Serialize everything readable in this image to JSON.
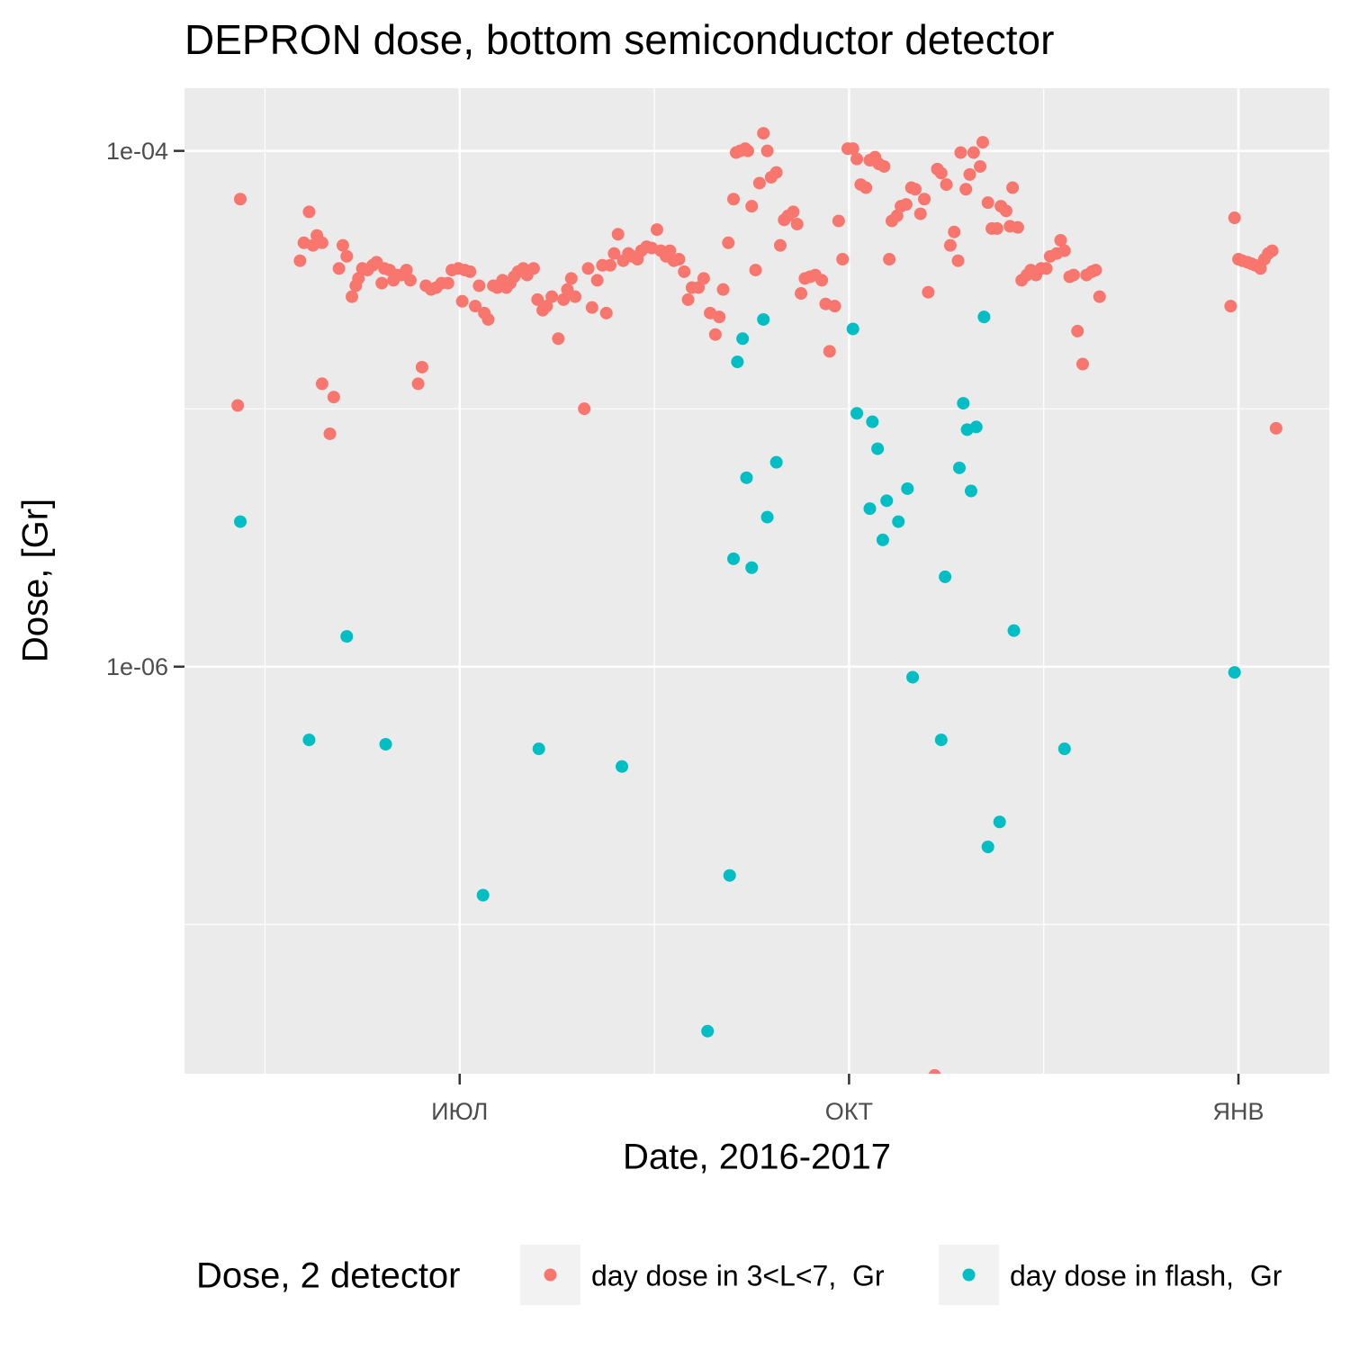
{
  "chart_data": {
    "type": "scatter",
    "title": "DEPRON dose, bottom semiconductor detector",
    "x_label": "Date, 2016-2017",
    "y_label": "Dose, [Gr]",
    "log_y": true,
    "grid": true,
    "xlim": [
      4.88,
      13.7
    ],
    "xticks": [
      {
        "value": 7,
        "label": "ИЮЛ"
      },
      {
        "value": 10,
        "label": "ОКТ"
      },
      {
        "value": 13,
        "label": "ЯНВ"
      }
    ],
    "xminor": [
      5.5,
      8.5,
      11.5
    ],
    "ylim": [
      2.64e-08,
      0.000175
    ],
    "yticks": [
      {
        "value": 0.0001,
        "label": "1e-04"
      },
      {
        "value": 1e-06,
        "label": "1e-06"
      }
    ],
    "yminor": [
      1e-05,
      1e-07
    ],
    "legend_title": "Dose, 2 detector",
    "legend_position": "bottom",
    "series": [
      {
        "name": "day dose in 3<L<7,  Gr",
        "color": "#F8766D",
        "x": [
          5.29,
          5.31,
          5.77,
          5.8,
          5.84,
          5.87,
          5.9,
          5.94,
          5.94,
          6.0,
          6.03,
          6.07,
          6.1,
          6.13,
          6.17,
          6.2,
          6.22,
          6.25,
          6.29,
          6.33,
          6.36,
          6.4,
          6.42,
          6.46,
          6.49,
          6.52,
          6.55,
          6.59,
          6.62,
          6.68,
          6.71,
          6.74,
          6.78,
          6.82,
          6.86,
          6.91,
          6.94,
          6.99,
          7.02,
          7.04,
          7.08,
          7.12,
          7.15,
          7.19,
          7.22,
          7.26,
          7.29,
          7.33,
          7.36,
          7.39,
          7.42,
          7.45,
          7.49,
          7.52,
          7.57,
          7.6,
          7.64,
          7.67,
          7.71,
          7.76,
          7.8,
          7.83,
          7.86,
          7.89,
          7.96,
          7.99,
          8.02,
          8.06,
          8.1,
          8.13,
          8.16,
          8.19,
          8.22,
          8.26,
          8.3,
          8.33,
          8.37,
          8.4,
          8.44,
          8.48,
          8.52,
          8.55,
          8.59,
          8.62,
          8.65,
          8.69,
          8.73,
          8.76,
          8.79,
          8.84,
          8.88,
          8.93,
          8.97,
          9.0,
          9.03,
          9.07,
          9.11,
          9.13,
          9.16,
          9.2,
          9.22,
          9.25,
          9.28,
          9.31,
          9.34,
          9.37,
          9.4,
          9.44,
          9.47,
          9.5,
          9.53,
          9.57,
          9.6,
          9.63,
          9.66,
          9.7,
          9.74,
          9.79,
          9.82,
          9.85,
          9.89,
          9.92,
          9.95,
          9.99,
          10.03,
          10.06,
          10.09,
          10.13,
          10.16,
          10.2,
          10.23,
          10.27,
          10.31,
          10.33,
          10.37,
          10.4,
          10.44,
          10.48,
          10.51,
          10.55,
          10.58,
          10.61,
          10.66,
          10.68,
          10.71,
          10.75,
          10.78,
          10.81,
          10.84,
          10.86,
          10.9,
          10.93,
          10.96,
          11.01,
          11.03,
          11.07,
          11.1,
          11.14,
          11.17,
          11.21,
          11.24,
          11.26,
          11.3,
          11.33,
          11.37,
          11.4,
          11.44,
          11.48,
          11.52,
          11.55,
          11.6,
          11.63,
          11.66,
          11.7,
          11.73,
          11.76,
          11.8,
          11.83,
          11.87,
          11.9,
          11.93,
          12.94,
          12.97,
          13.0,
          13.03,
          13.07,
          13.1,
          13.13,
          13.17,
          13.2,
          13.23,
          13.26,
          13.29
        ],
        "values": [
          1.03e-05,
          6.5e-05,
          3.75e-05,
          4.4e-05,
          5.8e-05,
          4.3e-05,
          4.7e-05,
          1.25e-05,
          4.4e-05,
          8e-06,
          1.11e-05,
          3.5e-05,
          4.3e-05,
          3.9e-05,
          2.72e-05,
          3e-05,
          3.2e-05,
          3.5e-05,
          3.45e-05,
          3.6e-05,
          3.7e-05,
          3.07e-05,
          3.5e-05,
          3.45e-05,
          3.15e-05,
          3.3e-05,
          3.3e-05,
          3.45e-05,
          3.15e-05,
          1.25e-05,
          1.45e-05,
          3e-05,
          2.9e-05,
          2.95e-05,
          3.07e-05,
          3.07e-05,
          3.45e-05,
          3.5e-05,
          2.61e-05,
          3.45e-05,
          3.4e-05,
          2.5e-05,
          3e-05,
          2.35e-05,
          2.22e-05,
          3e-05,
          2.95e-05,
          3.15e-05,
          2.95e-05,
          3.07e-05,
          3.25e-05,
          3.4e-05,
          3.5e-05,
          3.3e-05,
          3.5e-05,
          2.65e-05,
          2.41e-05,
          2.5e-05,
          2.72e-05,
          1.87e-05,
          2.65e-05,
          2.9e-05,
          3.2e-05,
          2.72e-05,
          1e-05,
          3.5e-05,
          2.47e-05,
          3.15e-05,
          3.6e-05,
          2.35e-05,
          3.6e-05,
          4e-05,
          4.75e-05,
          3.75e-05,
          4e-05,
          3.9e-05,
          3.8e-05,
          4.1e-05,
          4.25e-05,
          4.2e-05,
          4.95e-05,
          4.1e-05,
          3.9e-05,
          4.1e-05,
          3.75e-05,
          3.8e-05,
          3.4e-05,
          2.65e-05,
          2.95e-05,
          2.95e-05,
          3.2e-05,
          2.35e-05,
          1.94e-05,
          2.27e-05,
          2.9e-05,
          4.4e-05,
          6.5e-05,
          9.85e-05,
          0.0001,
          0.000102,
          0.0001,
          6.1e-05,
          3.45e-05,
          7.5e-05,
          0.000117,
          0.0001,
          7.9e-05,
          8.25e-05,
          4.3e-05,
          5.4e-05,
          5.6e-05,
          5.8e-05,
          5.2e-05,
          2.8e-05,
          3.2e-05,
          3.25e-05,
          3.3e-05,
          3.15e-05,
          2.55e-05,
          1.67e-05,
          2.5e-05,
          5.35e-05,
          3.8e-05,
          0.000102,
          0.000102,
          9.3e-05,
          7.4e-05,
          7.2e-05,
          9.2e-05,
          9.45e-05,
          8.9e-05,
          8.7e-05,
          3.8e-05,
          5.35e-05,
          5.6e-05,
          6.1e-05,
          6.2e-05,
          7.2e-05,
          7.1e-05,
          5.7e-05,
          6.5e-05,
          2.83e-05,
          2.6e-08,
          8.5e-05,
          8.2e-05,
          7.4e-05,
          4.3e-05,
          4.85e-05,
          3.75e-05,
          9.85e-05,
          7.1e-05,
          8.1e-05,
          9.85e-05,
          8.7e-05,
          0.000108,
          6.3e-05,
          5e-05,
          5e-05,
          6.1e-05,
          5.85e-05,
          5.1e-05,
          7.2e-05,
          5.05e-05,
          3.15e-05,
          3.3e-05,
          3.45e-05,
          3.3e-05,
          3.5e-05,
          3.5e-05,
          3.9e-05,
          4e-05,
          4.5e-05,
          4.1e-05,
          3.25e-05,
          3.3e-05,
          2e-05,
          1.49e-05,
          3.3e-05,
          3.4e-05,
          3.45e-05,
          2.72e-05,
          2.5e-05,
          5.5e-05,
          3.8e-05,
          3.75e-05,
          3.7e-05,
          3.65e-05,
          3.6e-05,
          3.5e-05,
          3.8e-05,
          4e-05,
          4.1e-05,
          8.4e-06
        ]
      },
      {
        "name": "day dose in flash,  Gr",
        "color": "#00BFC4",
        "x": [
          5.31,
          5.84,
          6.13,
          6.43,
          7.18,
          7.61,
          8.25,
          8.91,
          9.08,
          9.11,
          9.14,
          9.18,
          9.21,
          9.25,
          9.34,
          9.37,
          9.44,
          10.03,
          10.06,
          10.16,
          10.18,
          10.22,
          10.26,
          10.29,
          10.38,
          10.45,
          10.49,
          10.71,
          10.74,
          10.85,
          10.88,
          10.91,
          10.94,
          10.98,
          11.04,
          11.07,
          11.16,
          11.27,
          11.66,
          12.97
        ],
        "values": [
          3.65e-06,
          5.2e-07,
          1.31e-06,
          5e-07,
          1.3e-07,
          4.8e-07,
          4.1e-07,
          3.86e-08,
          1.55e-07,
          2.62e-06,
          1.52e-05,
          1.87e-05,
          5.4e-06,
          2.42e-06,
          2.22e-05,
          3.8e-06,
          6.2e-06,
          2.04e-05,
          9.6e-06,
          4.1e-06,
          8.9e-06,
          7e-06,
          3.1e-06,
          4.4e-06,
          3.65e-06,
          4.9e-06,
          9.1e-07,
          5.2e-07,
          2.23e-06,
          5.9e-06,
          1.05e-05,
          8.3e-06,
          4.8e-06,
          8.5e-06,
          2.27e-05,
          2e-07,
          2.5e-07,
          1.38e-06,
          4.8e-07,
          9.5e-07
        ]
      }
    ]
  }
}
